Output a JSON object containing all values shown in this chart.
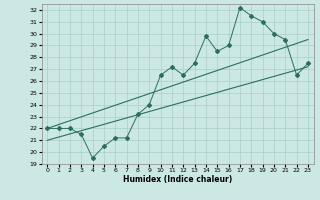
{
  "xlabel": "Humidex (Indice chaleur)",
  "xlim": [
    -0.5,
    23.5
  ],
  "ylim": [
    19,
    32.5
  ],
  "yticks": [
    19,
    20,
    21,
    22,
    23,
    24,
    25,
    26,
    27,
    28,
    29,
    30,
    31,
    32
  ],
  "xticks": [
    0,
    1,
    2,
    3,
    4,
    5,
    6,
    7,
    8,
    9,
    10,
    11,
    12,
    13,
    14,
    15,
    16,
    17,
    18,
    19,
    20,
    21,
    22,
    23
  ],
  "bg_color": "#cce8e4",
  "grid_color": "#aaceca",
  "line_color": "#2a6e60",
  "scatter_x": [
    0,
    1,
    2,
    3,
    4,
    5,
    6,
    7,
    8,
    9,
    10,
    11,
    12,
    13,
    14,
    15,
    16,
    17,
    18,
    19,
    20,
    21,
    22,
    23
  ],
  "scatter_y": [
    22.0,
    22.0,
    22.0,
    21.5,
    19.5,
    20.5,
    21.2,
    21.2,
    23.2,
    24.0,
    26.5,
    27.2,
    26.5,
    27.5,
    29.8,
    28.5,
    29.0,
    32.2,
    31.5,
    31.0,
    30.0,
    29.5,
    26.5,
    27.5
  ],
  "line1_x": [
    0,
    23
  ],
  "line1_y": [
    22.0,
    29.5
  ],
  "line2_x": [
    0,
    23
  ],
  "line2_y": [
    21.0,
    27.2
  ]
}
